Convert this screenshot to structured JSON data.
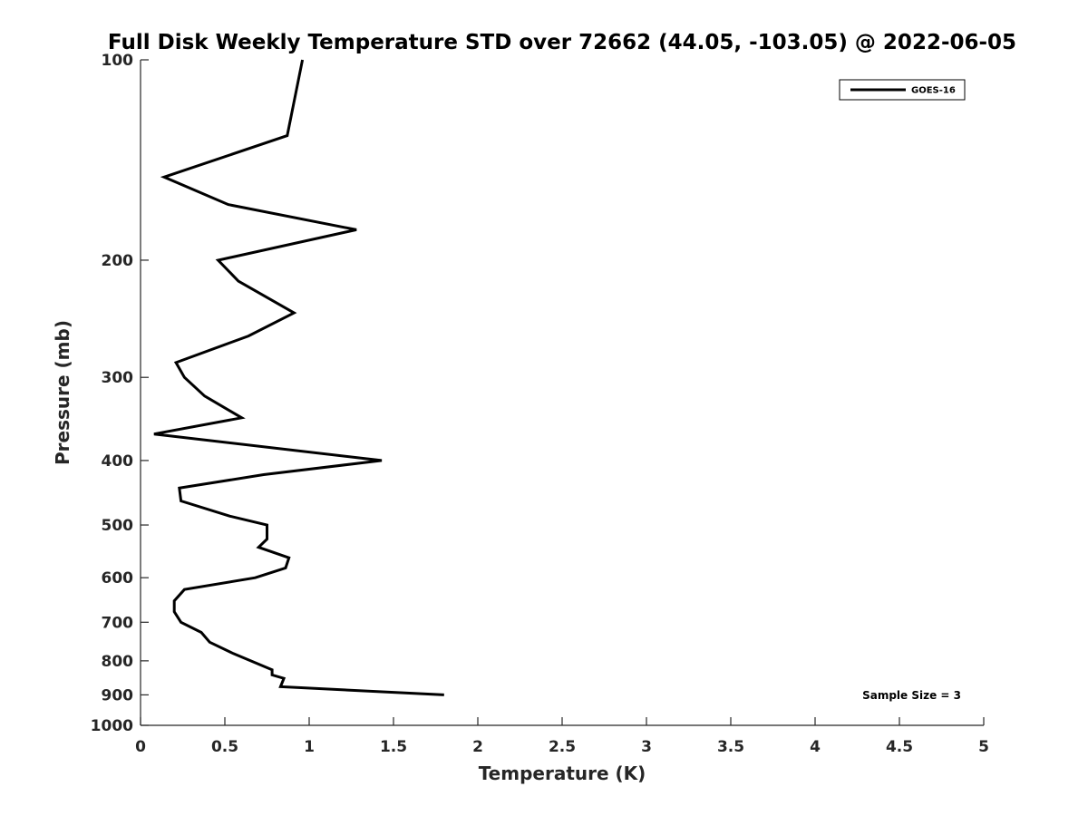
{
  "chart_data": {
    "type": "line",
    "title": "Full Disk Weekly Temperature STD over 72662 (44.05, -103.05) @ 2022-06-05",
    "xlabel": "Temperature (K)",
    "ylabel": "Pressure (mb)",
    "xlim": [
      0,
      5
    ],
    "ylim": [
      100,
      1000
    ],
    "y_scale": "log",
    "y_reversed": true,
    "x_ticks": [
      "0",
      "0.5",
      "1",
      "1.5",
      "2",
      "2.5",
      "3",
      "3.5",
      "4",
      "4.5",
      "5"
    ],
    "y_ticks": [
      "100",
      "200",
      "300",
      "400",
      "500",
      "600",
      "700",
      "800",
      "900",
      "1000"
    ],
    "grid": false,
    "legend_position": "top-right",
    "series": [
      {
        "name": "GOES-16",
        "color": "#000000",
        "points": [
          {
            "x": 0.96,
            "y": 100
          },
          {
            "x": 0.87,
            "y": 130
          },
          {
            "x": 0.14,
            "y": 150
          },
          {
            "x": 0.52,
            "y": 165
          },
          {
            "x": 1.28,
            "y": 180
          },
          {
            "x": 0.46,
            "y": 200
          },
          {
            "x": 0.58,
            "y": 215
          },
          {
            "x": 0.91,
            "y": 240
          },
          {
            "x": 0.64,
            "y": 260
          },
          {
            "x": 0.21,
            "y": 285
          },
          {
            "x": 0.26,
            "y": 300
          },
          {
            "x": 0.38,
            "y": 320
          },
          {
            "x": 0.6,
            "y": 345
          },
          {
            "x": 0.08,
            "y": 365
          },
          {
            "x": 1.43,
            "y": 400
          },
          {
            "x": 0.73,
            "y": 420
          },
          {
            "x": 0.23,
            "y": 440
          },
          {
            "x": 0.24,
            "y": 460
          },
          {
            "x": 0.53,
            "y": 485
          },
          {
            "x": 0.75,
            "y": 500
          },
          {
            "x": 0.75,
            "y": 525
          },
          {
            "x": 0.7,
            "y": 540
          },
          {
            "x": 0.88,
            "y": 560
          },
          {
            "x": 0.86,
            "y": 580
          },
          {
            "x": 0.68,
            "y": 600
          },
          {
            "x": 0.26,
            "y": 625
          },
          {
            "x": 0.2,
            "y": 650
          },
          {
            "x": 0.2,
            "y": 675
          },
          {
            "x": 0.24,
            "y": 700
          },
          {
            "x": 0.36,
            "y": 725
          },
          {
            "x": 0.41,
            "y": 750
          },
          {
            "x": 0.55,
            "y": 780
          },
          {
            "x": 0.78,
            "y": 825
          },
          {
            "x": 0.78,
            "y": 840
          },
          {
            "x": 0.85,
            "y": 850
          },
          {
            "x": 0.83,
            "y": 875
          },
          {
            "x": 1.8,
            "y": 900
          }
        ]
      }
    ],
    "annotations": [
      {
        "text": "Sample Size = 3"
      }
    ]
  }
}
